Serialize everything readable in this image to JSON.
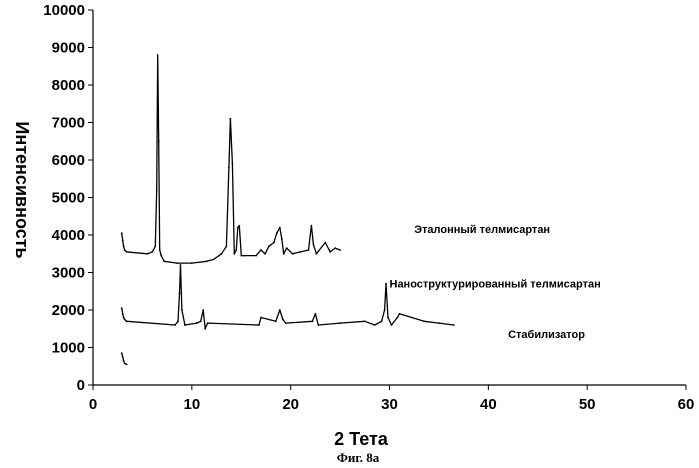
{
  "chart_data": {
    "type": "line",
    "title": "",
    "xlabel": "2 Тета",
    "ylabel": "Интенсивность",
    "xlim": [
      0,
      60
    ],
    "ylim": [
      0,
      10000
    ],
    "x_ticks": [
      "0",
      "10",
      "20",
      "30",
      "40",
      "50",
      "60"
    ],
    "y_ticks": [
      "0",
      "1000",
      "2000",
      "3000",
      "4000",
      "5000",
      "6000",
      "7000",
      "8000",
      "9000",
      "10000"
    ],
    "grid": false,
    "caption": "Фиг. 8а",
    "series": [
      {
        "name": "Эталонный телмисартан",
        "label_at": [
          32.5,
          4050
        ],
        "x": [
          2.9,
          3.0,
          3.1,
          3.2,
          3.4,
          5.5,
          6.0,
          6.3,
          6.45,
          6.55,
          6.65,
          6.75,
          6.9,
          7.2,
          8.5,
          10.0,
          11.5,
          12.2,
          13.0,
          13.5,
          13.75,
          13.9,
          14.1,
          14.3,
          14.5,
          14.65,
          14.8,
          15.0,
          15.3,
          16.5,
          17.0,
          17.4,
          17.8,
          18.3,
          18.6,
          18.9,
          19.1,
          19.3,
          19.6,
          20.2,
          21.0,
          21.8,
          22.1,
          22.3,
          22.6,
          23.5,
          24.0,
          24.5,
          25.0
        ],
        "y": [
          4050,
          3850,
          3700,
          3600,
          3550,
          3500,
          3550,
          3700,
          5200,
          8800,
          6500,
          3600,
          3450,
          3300,
          3250,
          3250,
          3300,
          3350,
          3500,
          3700,
          5800,
          7100,
          5900,
          3500,
          3600,
          4200,
          4250,
          3450,
          3450,
          3450,
          3600,
          3500,
          3700,
          3800,
          4050,
          4200,
          3900,
          3500,
          3650,
          3500,
          3550,
          3600,
          4250,
          3750,
          3500,
          3800,
          3550,
          3650,
          3600
        ]
      },
      {
        "name": "Наноструктурированный телмисартан",
        "label_at": [
          30.0,
          2600
        ],
        "x": [
          2.9,
          3.0,
          3.1,
          3.2,
          3.4,
          8.3,
          8.6,
          8.75,
          8.85,
          9.0,
          9.3,
          10.5,
          10.9,
          11.15,
          11.35,
          11.6,
          16.8,
          17.0,
          18.5,
          18.9,
          19.2,
          19.5,
          22.2,
          22.5,
          22.8,
          25.0,
          27.5,
          28.5,
          29.2,
          29.5,
          29.65,
          29.85,
          30.2,
          30.8,
          31.0,
          33.5,
          35.0,
          36.5
        ],
        "y": [
          2050,
          1900,
          1800,
          1750,
          1700,
          1600,
          1700,
          2450,
          3200,
          2000,
          1600,
          1650,
          1700,
          2000,
          1500,
          1650,
          1600,
          1800,
          1700,
          2000,
          1750,
          1650,
          1700,
          1900,
          1600,
          1650,
          1700,
          1600,
          1700,
          2000,
          2700,
          1800,
          1600,
          1800,
          1900,
          1700,
          1650,
          1600
        ]
      },
      {
        "name": "Стабилизатор",
        "label_at": [
          42.0,
          1250
        ],
        "x": [
          2.9,
          3.0,
          3.1,
          3.2,
          3.4
        ],
        "y": [
          850,
          750,
          650,
          580,
          550
        ]
      }
    ]
  }
}
